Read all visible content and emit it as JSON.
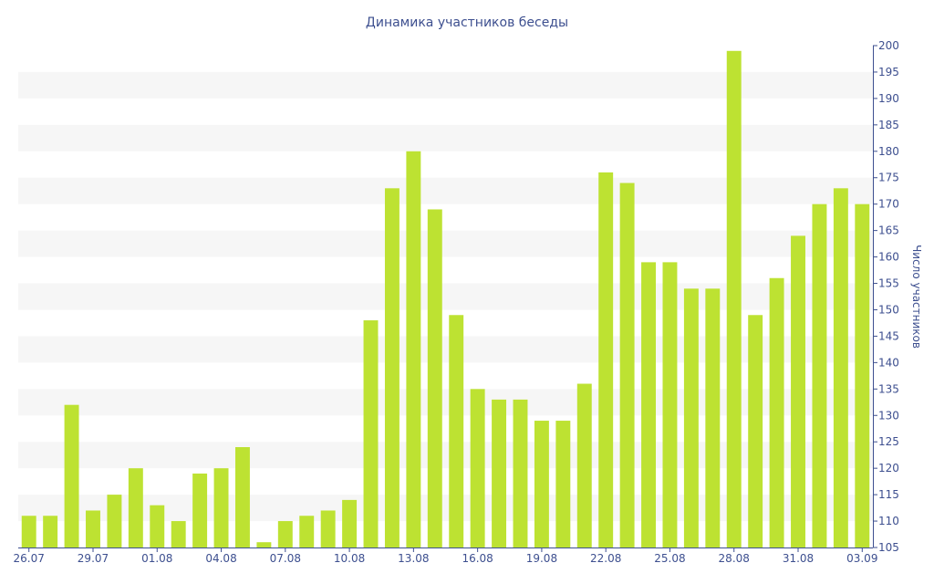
{
  "chart_data": {
    "type": "bar",
    "title": "Динамика участников беседы",
    "xlabel": "",
    "ylabel": "Число участников",
    "ylim": [
      105,
      200
    ],
    "yticks": [
      105,
      110,
      115,
      120,
      125,
      130,
      135,
      140,
      145,
      150,
      155,
      160,
      165,
      170,
      175,
      180,
      185,
      190,
      195,
      200
    ],
    "grid": "alternating horizontal bands",
    "legend": "none",
    "colors": {
      "bar": "#bde232",
      "band": "#f6f6f6",
      "text": "#3d4f8f",
      "axis": "#3d4f8f"
    },
    "categories": [
      "26.07",
      "27.07",
      "28.07",
      "29.07",
      "30.07",
      "31.07",
      "01.08",
      "02.08",
      "03.08",
      "04.08",
      "05.08",
      "06.08",
      "07.08",
      "08.08",
      "09.08",
      "10.08",
      "11.08",
      "12.08",
      "13.08",
      "14.08",
      "15.08",
      "16.08",
      "17.08",
      "18.08",
      "19.08",
      "20.08",
      "21.08",
      "22.08",
      "23.08",
      "24.08",
      "25.08",
      "26.08",
      "27.08",
      "28.08",
      "29.08",
      "30.08",
      "31.08",
      "01.09",
      "02.09",
      "03.09"
    ],
    "x_tick_labels": [
      "26.07",
      "29.07",
      "01.08",
      "04.08",
      "07.08",
      "10.08",
      "13.08",
      "16.08",
      "19.08",
      "22.08",
      "25.08",
      "28.08",
      "31.08",
      "03.09"
    ],
    "series": [
      {
        "values": [
          111,
          111,
          132,
          112,
          115,
          120,
          113,
          110,
          119,
          120,
          124,
          106,
          110,
          111,
          112,
          114,
          148,
          173,
          180,
          169,
          149,
          135,
          133,
          133,
          129,
          129,
          136,
          176,
          174,
          159,
          159,
          154,
          154,
          199,
          149,
          156,
          164,
          170,
          173,
          170
        ]
      }
    ]
  }
}
